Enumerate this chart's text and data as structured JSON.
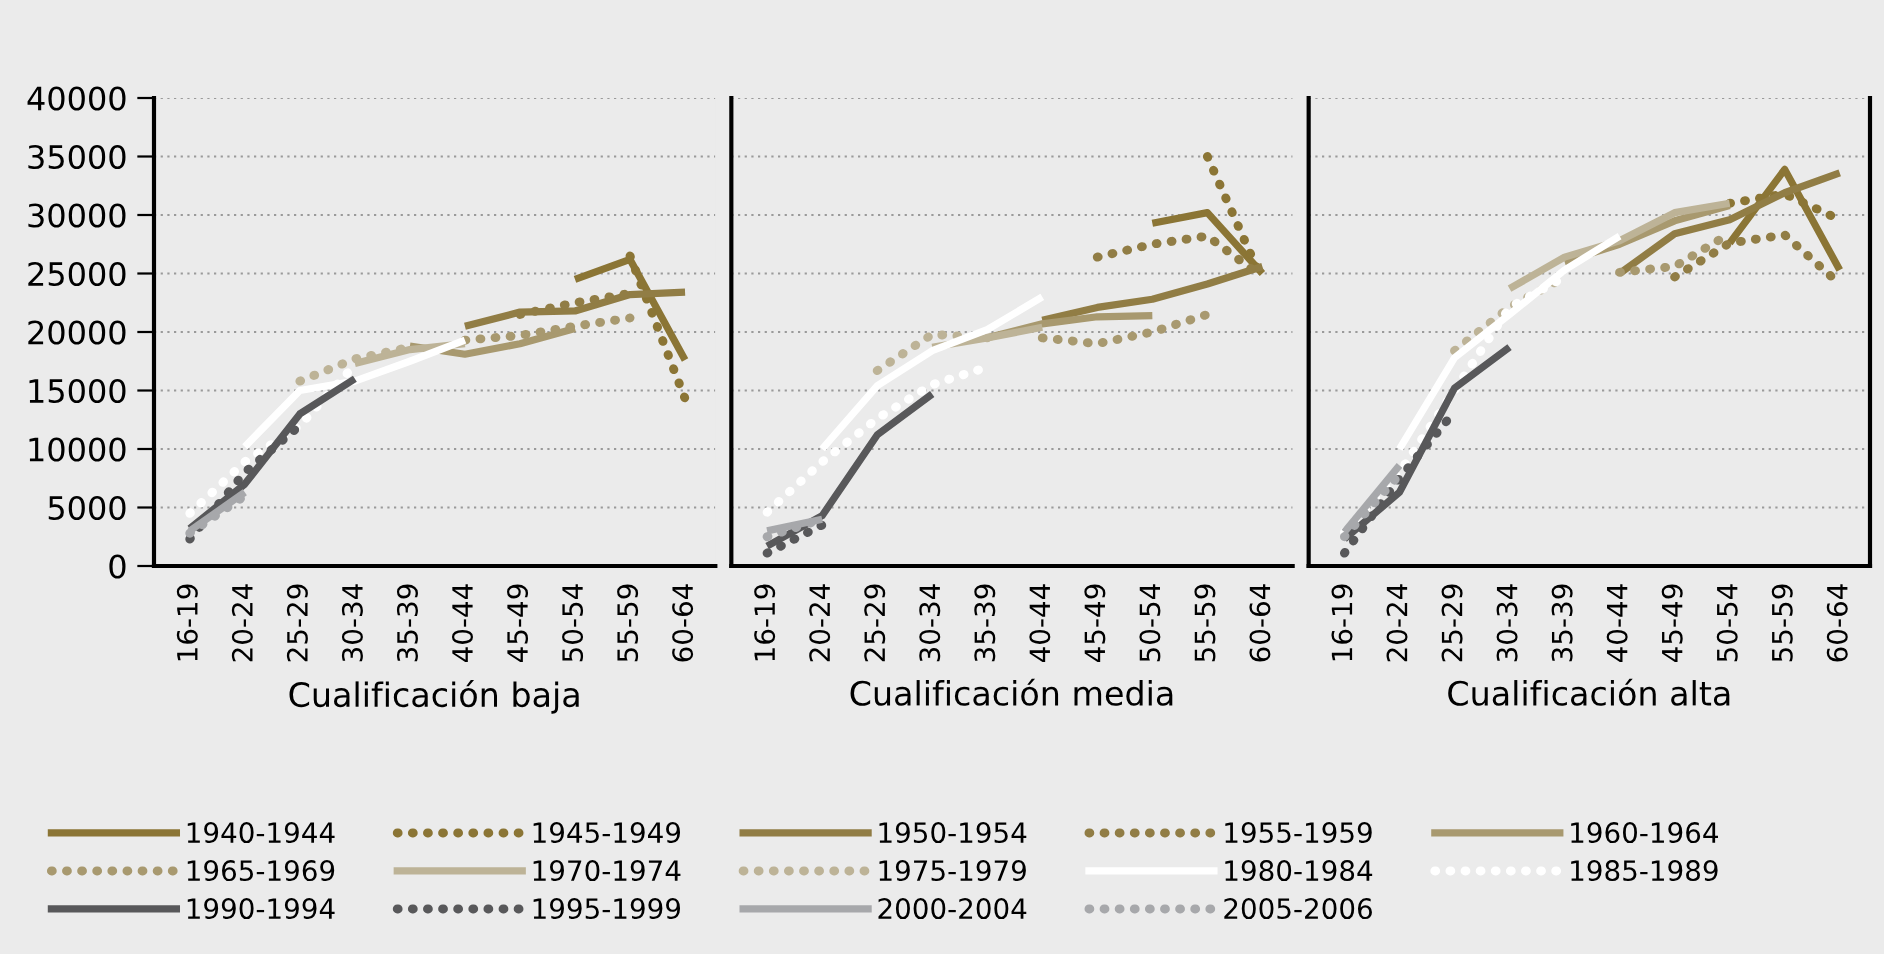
{
  "chart_data": [
    {
      "type": "line",
      "xlabel": "Cualificación baja",
      "categories": [
        "16-19",
        "20-24",
        "25-29",
        "30-34",
        "35-39",
        "40-44",
        "45-49",
        "50-54",
        "55-59",
        "60-64"
      ],
      "ylim": [
        0,
        40000
      ],
      "yticks": [
        0,
        5000,
        10000,
        15000,
        20000,
        25000,
        30000,
        35000,
        40000
      ],
      "grid": "y",
      "legend": "bottom",
      "marker": "none",
      "series": [
        {
          "name": "1940-1944",
          "color": "#8b7535",
          "line_style": "solid",
          "values": [
            null,
            null,
            null,
            null,
            null,
            null,
            null,
            24500,
            26200,
            17600
          ]
        },
        {
          "name": "1945-1949",
          "color": "#8b7535",
          "line_style": "dotted",
          "values": [
            null,
            null,
            null,
            null,
            null,
            null,
            null,
            null,
            26500,
            14300
          ]
        },
        {
          "name": "1950-1954",
          "color": "#917d45",
          "line_style": "solid",
          "values": [
            null,
            null,
            null,
            null,
            null,
            20500,
            21700,
            21800,
            23200,
            23400
          ]
        },
        {
          "name": "1955-1959",
          "color": "#917d45",
          "line_style": "dotted",
          "values": [
            null,
            null,
            null,
            null,
            null,
            null,
            21500,
            22500,
            23300,
            null
          ]
        },
        {
          "name": "1960-1964",
          "color": "#a8996f",
          "line_style": "solid",
          "values": [
            null,
            null,
            null,
            null,
            18800,
            18100,
            19000,
            20300,
            null,
            null
          ]
        },
        {
          "name": "1965-1969",
          "color": "#a8996f",
          "line_style": "dotted",
          "values": [
            null,
            null,
            null,
            null,
            null,
            19300,
            19700,
            20500,
            21200,
            null
          ]
        },
        {
          "name": "1970-1974",
          "color": "#bdb397",
          "line_style": "solid",
          "values": [
            null,
            null,
            null,
            17300,
            18500,
            19000,
            null,
            null,
            null,
            null
          ]
        },
        {
          "name": "1975-1979",
          "color": "#bdb397",
          "line_style": "dotted",
          "values": [
            null,
            null,
            15800,
            17700,
            18700,
            null,
            null,
            null,
            null,
            null
          ]
        },
        {
          "name": "1980-1984",
          "color": "#ffffff",
          "line_style": "solid",
          "values": [
            null,
            10200,
            15000,
            15800,
            17500,
            19300,
            null,
            null,
            null,
            null
          ]
        },
        {
          "name": "1985-1989",
          "color": "#ffffff",
          "line_style": "dotted",
          "values": [
            4500,
            8900,
            12000,
            17200,
            null,
            null,
            null,
            null,
            null,
            null
          ]
        },
        {
          "name": "1990-1994",
          "color": "#58585a",
          "line_style": "solid",
          "values": [
            3200,
            7000,
            13000,
            16000,
            null,
            null,
            null,
            null,
            null,
            null
          ]
        },
        {
          "name": "1995-1999",
          "color": "#58585a",
          "line_style": "dotted",
          "values": [
            2300,
            8000,
            12000,
            null,
            null,
            null,
            null,
            null,
            null,
            null
          ]
        },
        {
          "name": "2000-2004",
          "color": "#a7a8ab",
          "line_style": "solid",
          "values": [
            3000,
            6300,
            null,
            null,
            null,
            null,
            null,
            null,
            null,
            null
          ]
        },
        {
          "name": "2005-2006",
          "color": "#a7a8ab",
          "line_style": "dotted",
          "values": [
            2800,
            6000,
            null,
            null,
            null,
            null,
            null,
            null,
            null,
            null
          ]
        }
      ]
    },
    {
      "type": "line",
      "xlabel": "Cualificación media",
      "categories": [
        "16-19",
        "20-24",
        "25-29",
        "30-34",
        "35-39",
        "40-44",
        "45-49",
        "50-54",
        "55-59",
        "60-64"
      ],
      "ylim": [
        0,
        40000
      ],
      "yticks": [
        0,
        5000,
        10000,
        15000,
        20000,
        25000,
        30000,
        35000,
        40000
      ],
      "grid": "y",
      "tick_labels": "x",
      "marker": "none",
      "series": [
        {
          "color": "#8b7535",
          "line_style": "solid",
          "values": [
            null,
            null,
            null,
            null,
            null,
            null,
            null,
            29300,
            30200,
            25000
          ]
        },
        {
          "color": "#8b7535",
          "line_style": "dotted",
          "values": [
            null,
            null,
            null,
            null,
            null,
            null,
            null,
            null,
            35000,
            24400
          ]
        },
        {
          "color": "#917d45",
          "line_style": "solid",
          "values": [
            null,
            null,
            null,
            null,
            null,
            21000,
            22100,
            22800,
            24100,
            25600
          ]
        },
        {
          "color": "#917d45",
          "line_style": "dotted",
          "values": [
            null,
            null,
            null,
            null,
            null,
            null,
            26400,
            27500,
            28200,
            24700
          ]
        },
        {
          "color": "#a8996f",
          "line_style": "solid",
          "values": [
            null,
            null,
            null,
            null,
            19500,
            20700,
            21300,
            21400,
            null,
            null
          ]
        },
        {
          "color": "#a8996f",
          "line_style": "dotted",
          "values": [
            null,
            null,
            null,
            null,
            null,
            19500,
            19000,
            20000,
            21500,
            null
          ]
        },
        {
          "color": "#bdb397",
          "line_style": "solid",
          "values": [
            null,
            null,
            null,
            18700,
            19500,
            20400,
            null,
            null,
            null,
            null
          ]
        },
        {
          "color": "#bdb397",
          "line_style": "dotted",
          "values": [
            null,
            null,
            16700,
            19800,
            19500,
            null,
            null,
            null,
            null,
            null
          ]
        },
        {
          "color": "#ffffff",
          "line_style": "solid",
          "values": [
            null,
            10000,
            15400,
            18400,
            20200,
            23000,
            null,
            null,
            null,
            null
          ]
        },
        {
          "color": "#ffffff",
          "line_style": "dotted",
          "values": [
            4600,
            8900,
            12600,
            15500,
            17000,
            null,
            null,
            null,
            null,
            null
          ]
        },
        {
          "color": "#58585a",
          "line_style": "solid",
          "values": [
            1700,
            4300,
            11200,
            14700,
            null,
            null,
            null,
            null,
            null,
            null
          ]
        },
        {
          "color": "#58585a",
          "line_style": "dotted",
          "values": [
            1100,
            3500,
            null,
            null,
            null,
            null,
            null,
            null,
            null,
            null
          ]
        },
        {
          "color": "#a7a8ab",
          "line_style": "solid",
          "values": [
            3000,
            4000,
            null,
            null,
            null,
            null,
            null,
            null,
            null,
            null
          ]
        },
        {
          "color": "#a7a8ab",
          "line_style": "dotted",
          "values": [
            2500,
            4000,
            null,
            null,
            null,
            null,
            null,
            null,
            null,
            null
          ]
        }
      ]
    },
    {
      "type": "line",
      "xlabel": "Cualificación alta",
      "categories": [
        "16-19",
        "20-24",
        "25-29",
        "30-34",
        "35-39",
        "40-44",
        "45-49",
        "50-54",
        "55-59",
        "60-64"
      ],
      "ylim": [
        0,
        40000
      ],
      "yticks": [
        0,
        5000,
        10000,
        15000,
        20000,
        25000,
        30000,
        35000,
        40000
      ],
      "grid": "y",
      "tick_labels": "x",
      "marker": "none",
      "series": [
        {
          "color": "#8b7535",
          "line_style": "solid",
          "values": [
            null,
            null,
            null,
            null,
            null,
            null,
            null,
            27600,
            33900,
            25300
          ]
        },
        {
          "color": "#8b7535",
          "line_style": "dotted",
          "values": [
            null,
            null,
            null,
            null,
            null,
            null,
            null,
            31000,
            31800,
            29600
          ]
        },
        {
          "color": "#917d45",
          "line_style": "solid",
          "values": [
            null,
            null,
            null,
            null,
            null,
            25000,
            28400,
            29600,
            31900,
            33600
          ]
        },
        {
          "color": "#917d45",
          "line_style": "dotted",
          "values": [
            null,
            null,
            null,
            null,
            null,
            null,
            24700,
            27600,
            28300,
            24100
          ]
        },
        {
          "color": "#a8996f",
          "line_style": "solid",
          "values": [
            null,
            null,
            null,
            null,
            26000,
            27500,
            29500,
            30800,
            null,
            null
          ]
        },
        {
          "color": "#a8996f",
          "line_style": "dotted",
          "values": [
            null,
            null,
            null,
            null,
            null,
            25100,
            25600,
            28400,
            null,
            null
          ]
        },
        {
          "color": "#bdb397",
          "line_style": "solid",
          "values": [
            null,
            null,
            null,
            23700,
            26400,
            27800,
            30200,
            31000,
            null,
            null
          ]
        },
        {
          "color": "#bdb397",
          "line_style": "dotted",
          "values": [
            null,
            null,
            18400,
            22100,
            24700,
            null,
            null,
            null,
            null,
            null
          ]
        },
        {
          "color": "#ffffff",
          "line_style": "solid",
          "values": [
            null,
            10000,
            17800,
            21500,
            25300,
            28200,
            null,
            null,
            null,
            null
          ]
        },
        {
          "color": "#ffffff",
          "line_style": "dotted",
          "values": [
            2900,
            8000,
            15000,
            22100,
            24700,
            null,
            null,
            null,
            null,
            null
          ]
        },
        {
          "color": "#58585a",
          "line_style": "solid",
          "values": [
            2300,
            6300,
            15200,
            18700,
            null,
            null,
            null,
            null,
            null,
            null
          ]
        },
        {
          "color": "#58585a",
          "line_style": "dotted",
          "values": [
            1100,
            7500,
            13200,
            null,
            null,
            null,
            null,
            null,
            null,
            null
          ]
        },
        {
          "color": "#a7a8ab",
          "line_style": "solid",
          "values": [
            2900,
            8600,
            null,
            null,
            null,
            null,
            null,
            null,
            null,
            null
          ]
        },
        {
          "color": "#a7a8ab",
          "line_style": "dotted",
          "values": [
            2500,
            7800,
            null,
            null,
            null,
            null,
            null,
            null,
            null,
            null
          ]
        }
      ]
    }
  ]
}
